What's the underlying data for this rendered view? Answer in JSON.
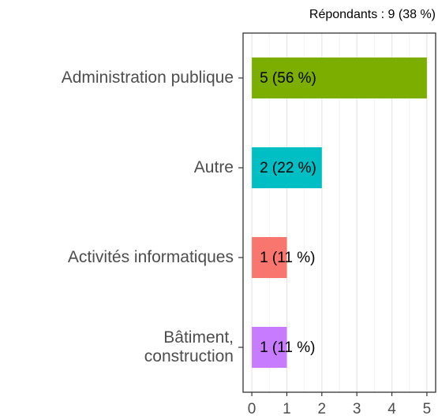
{
  "chart_data": {
    "type": "hbar",
    "subtitle": "Répondants : 9 (38 %)",
    "categories": [
      "Administration publique",
      "Autre",
      "Activités informatiques",
      "Bâtiment,\nconstruction"
    ],
    "values": [
      5,
      2,
      1,
      1
    ],
    "value_labels": [
      "5 (56 %)",
      "2 (22 %)",
      "1 (11 %)",
      "1 (11 %)"
    ],
    "colors": [
      "#7CAE00",
      "#00BFC4",
      "#F8766D",
      "#C77CFF"
    ],
    "xlim": [
      -0.25,
      5.25
    ],
    "xticks": [
      0,
      1,
      2,
      3,
      4,
      5
    ],
    "grid": true
  }
}
